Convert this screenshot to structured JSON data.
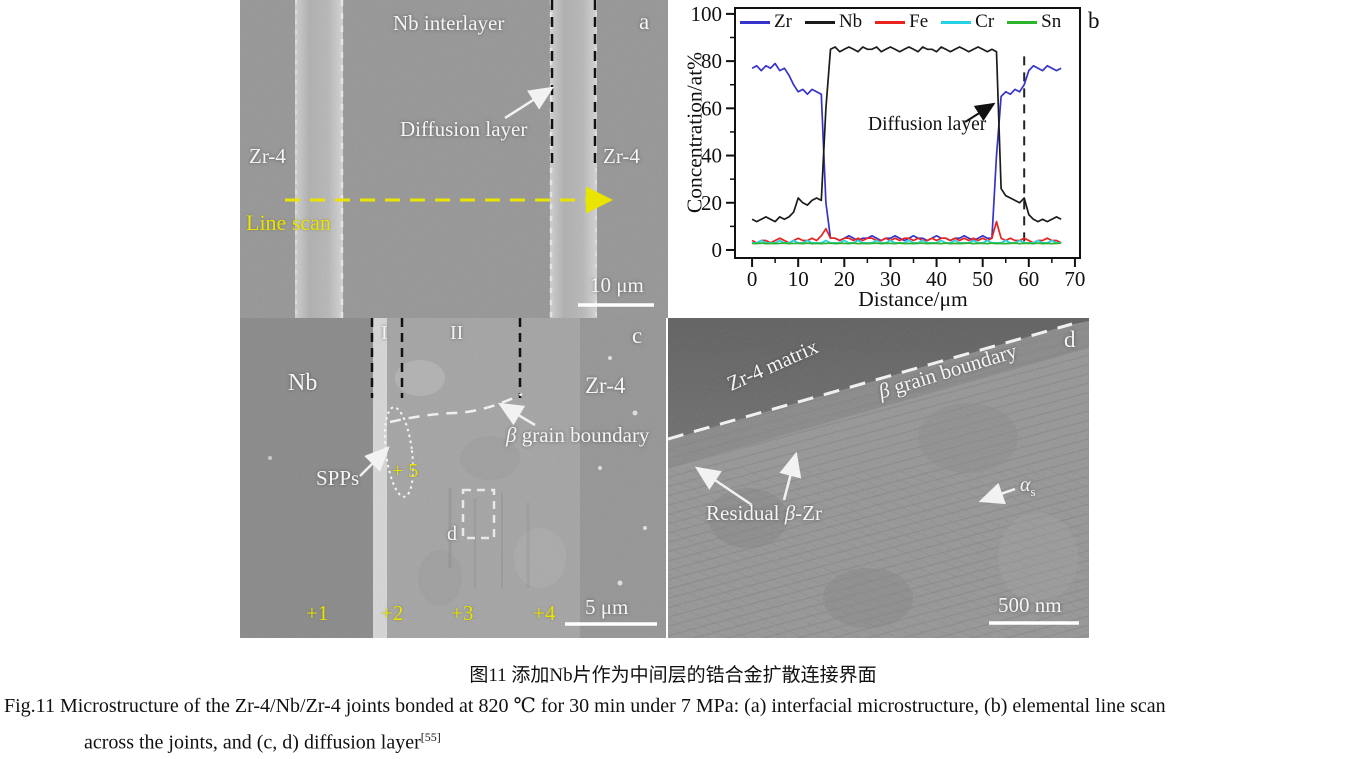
{
  "figure": {
    "caption_zh": "图11  添加Nb片作为中间层的锆合金扩散连接界面",
    "caption_en_line1": "Fig.11  Microstructure of the Zr-4/Nb/Zr-4 joints bonded at 820 ℃ for 30 min under 7 MPa: (a) interfacial microstructure, (b) elemental line scan",
    "caption_en_line2": "across the joints, and (c, d) diffusion layer",
    "caption_en_ref": "[55]"
  },
  "panel_a": {
    "label": "a",
    "interlayer_label": "Nb interlayer",
    "diffusion_label": "Diffusion layer",
    "left_material": "Zr-4",
    "right_material": "Zr-4",
    "line_scan": "Line scan",
    "scale_bar": "10 μm"
  },
  "panel_b": {
    "label": "b",
    "annotation": "Diffusion layer"
  },
  "chart_data": {
    "type": "line",
    "title": "",
    "xlabel": "Distance/μm",
    "ylabel": "Concentration/at%",
    "xlim": [
      -3.7,
      71.1
    ],
    "ylim": [
      -3.4,
      102.5
    ],
    "x_ticks_major": [
      0,
      10,
      20,
      30,
      40,
      50,
      60,
      70
    ],
    "x_ticks_minor": [
      5,
      15,
      25,
      35,
      45,
      55,
      65
    ],
    "y_ticks_major": [
      0,
      20,
      40,
      60,
      80,
      100
    ],
    "y_ticks_minor": [
      10,
      30,
      50,
      70,
      90
    ],
    "x_start": 0,
    "x_step": 1,
    "grid": false,
    "legend_position": "top-inside",
    "dashed_vline_x": 59,
    "annotation": {
      "text": "Diffusion layer",
      "arrow_from_x": 46.2,
      "arrow_from_y": 54.2,
      "arrow_to_x": 52.4,
      "arrow_to_y": 61.9
    },
    "series": [
      {
        "name": "Zr",
        "color": "#3533c9",
        "values": [
          77,
          78,
          76,
          78,
          77,
          79,
          76,
          77,
          74,
          70,
          67,
          68,
          66,
          68,
          67,
          66,
          20,
          5,
          5,
          4,
          5,
          6,
          5,
          4,
          5,
          5,
          6,
          5,
          4,
          5,
          5,
          6,
          5,
          4,
          5,
          6,
          5,
          5,
          4,
          5,
          6,
          5,
          5,
          4,
          5,
          5,
          6,
          5,
          4,
          5,
          6,
          5,
          5,
          40,
          65,
          67,
          66,
          68,
          67,
          70,
          76,
          78,
          77,
          76,
          78,
          77,
          76,
          77
        ]
      },
      {
        "name": "Nb",
        "color": "#1b1b1b",
        "values": [
          13,
          12,
          13,
          14,
          13,
          12,
          14,
          13,
          14,
          16,
          22,
          20,
          19,
          21,
          22,
          21,
          60,
          85,
          86,
          84,
          85,
          86,
          85,
          84,
          86,
          85,
          85,
          86,
          84,
          85,
          86,
          85,
          84,
          85,
          86,
          85,
          84,
          86,
          85,
          85,
          84,
          86,
          85,
          84,
          85,
          86,
          85,
          84,
          85,
          86,
          85,
          84,
          85,
          84,
          26,
          23,
          22,
          21,
          20,
          22,
          15,
          13,
          12,
          13,
          12,
          13,
          14,
          13
        ]
      },
      {
        "name": "Fe",
        "color": "#e8231e",
        "values": [
          4,
          3,
          4,
          4,
          3,
          4,
          5,
          4,
          3,
          4,
          5,
          4,
          4,
          5,
          4,
          6,
          9,
          5,
          5,
          4,
          5,
          5,
          4,
          5,
          4,
          5,
          5,
          4,
          4,
          5,
          4,
          5,
          4,
          5,
          5,
          4,
          5,
          4,
          4,
          5,
          4,
          5,
          5,
          4,
          5,
          4,
          5,
          4,
          5,
          4,
          5,
          4,
          5,
          12,
          5,
          4,
          5,
          4,
          4,
          5,
          4,
          3,
          4,
          4,
          5,
          4,
          4,
          3
        ]
      },
      {
        "name": "Cr",
        "color": "#25d2e5",
        "values": [
          3,
          3,
          4,
          3,
          3,
          3,
          4,
          3,
          3,
          4,
          3,
          3,
          4,
          3,
          3,
          3,
          4,
          3,
          3,
          3,
          4,
          3,
          3,
          4,
          3,
          3,
          3,
          4,
          3,
          3,
          4,
          3,
          3,
          3,
          4,
          3,
          3,
          4,
          3,
          3,
          3,
          4,
          3,
          3,
          4,
          3,
          3,
          3,
          4,
          3,
          3,
          4,
          3,
          3,
          3,
          4,
          3,
          3,
          4,
          3,
          3,
          3,
          4,
          3,
          3,
          4,
          3,
          3
        ]
      },
      {
        "name": "Sn",
        "color": "#2cb52c",
        "values": [
          2.8,
          2.7,
          2.9,
          2.7,
          2.8,
          2.7,
          2.8,
          2.9,
          2.7,
          2.8,
          2.8,
          2.7,
          2.9,
          2.7,
          2.8,
          2.7,
          2.8,
          2.9,
          2.7,
          2.8,
          2.8,
          2.7,
          2.9,
          2.7,
          2.8,
          2.7,
          2.8,
          2.9,
          2.7,
          2.8,
          2.8,
          2.7,
          2.9,
          2.7,
          2.8,
          2.7,
          2.8,
          2.9,
          2.7,
          2.8,
          2.8,
          2.7,
          2.9,
          2.7,
          2.8,
          2.7,
          2.8,
          2.9,
          2.7,
          2.8,
          2.8,
          2.7,
          2.9,
          2.7,
          2.8,
          2.7,
          2.8,
          2.9,
          2.7,
          2.8,
          2.8,
          2.7,
          2.9,
          2.7,
          2.8,
          2.7,
          2.8,
          2.9
        ]
      }
    ]
  },
  "panel_c": {
    "label": "c",
    "region_i": "I",
    "region_ii": "II",
    "left_material": "Nb",
    "right_material": "Zr-4",
    "spps": "SPPs",
    "beta_gb_sym": "β",
    "beta_gb_rest": " grain boundary",
    "marker_5": "+ 5",
    "d_box_label": "d",
    "markers": [
      "+1",
      "+2",
      "+3",
      "+4"
    ],
    "scale_bar": "5 μm"
  },
  "panel_d": {
    "label": "d",
    "matrix": "Zr-4 matrix",
    "beta_gb_sym": "β",
    "beta_gb_rest": " grain boundary",
    "residual_pre": "Residual ",
    "residual_sym": "β",
    "residual_post": "-Zr",
    "alpha_sym": "α",
    "alpha_sub": "s",
    "scale_bar": "500 nm"
  }
}
